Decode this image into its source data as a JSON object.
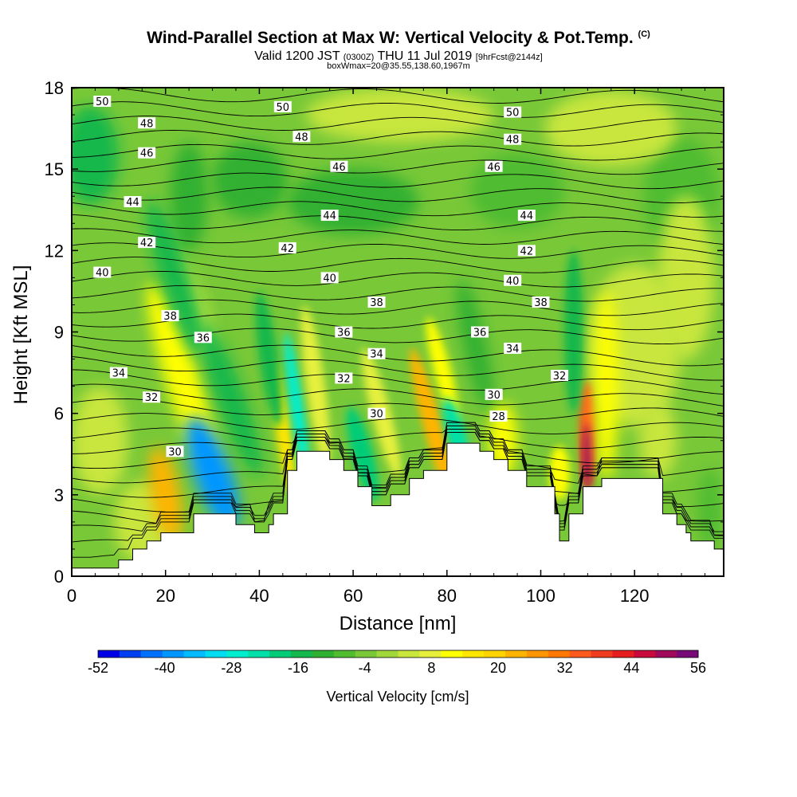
{
  "title": {
    "main": "Wind-Parallel Section at Max W: Vertical Velocity & Pot.Temp.",
    "copyright": "(C)",
    "valid_prefix": "Valid 1200 JST",
    "valid_utc": "(0300Z)",
    "valid_date": "THU 11 Jul 2019",
    "forecast": "[9hrFcst@2144z]",
    "box": "boxWmax=20@35.55,138.60,1967m"
  },
  "chart_data": {
    "type": "heatmap",
    "xlabel": "Distance [nm]",
    "ylabel": "Height [Kft MSL]",
    "xlim": [
      0,
      139
    ],
    "ylim": [
      0,
      18
    ],
    "xticks": [
      0,
      20,
      40,
      60,
      80,
      100,
      120
    ],
    "yticks": [
      0,
      3,
      6,
      9,
      12,
      15,
      18
    ],
    "fill_variable": "Vertical Velocity [cm/s]",
    "colorbar": {
      "title": "Vertical Velocity [cm/s]",
      "tick_labels": [
        "-52",
        "-40",
        "-28",
        "-16",
        "-4",
        "8",
        "20",
        "32",
        "44",
        "56"
      ],
      "min": -52,
      "max": 56,
      "step": 4,
      "colors": [
        "#0000e6",
        "#0040f0",
        "#0070ff",
        "#0096ff",
        "#00bbff",
        "#00ddf0",
        "#00eed0",
        "#00e0a8",
        "#00cc78",
        "#14b84c",
        "#30b030",
        "#50bc30",
        "#78c838",
        "#a0d83c",
        "#c8e63c",
        "#e6f03c",
        "#ffff00",
        "#ffe600",
        "#ffd200",
        "#ffb400",
        "#ff9600",
        "#ff7800",
        "#ff5a1e",
        "#f03c1e",
        "#e61e1e",
        "#c80a3c",
        "#a00a5a",
        "#780a78"
      ]
    },
    "contour_variable": "Potential Temperature",
    "contour_labels": [
      {
        "text": "50",
        "x": 6.5,
        "y": 17.5
      },
      {
        "text": "50",
        "x": 45,
        "y": 17.3
      },
      {
        "text": "50",
        "x": 94,
        "y": 17.1
      },
      {
        "text": "48",
        "x": 16,
        "y": 16.7
      },
      {
        "text": "48",
        "x": 49,
        "y": 16.2
      },
      {
        "text": "48",
        "x": 94,
        "y": 16.1
      },
      {
        "text": "46",
        "x": 16,
        "y": 15.6
      },
      {
        "text": "46",
        "x": 57,
        "y": 15.1
      },
      {
        "text": "46",
        "x": 90,
        "y": 15.1
      },
      {
        "text": "44",
        "x": 13,
        "y": 13.8
      },
      {
        "text": "44",
        "x": 55,
        "y": 13.3
      },
      {
        "text": "44",
        "x": 97,
        "y": 13.3
      },
      {
        "text": "42",
        "x": 16,
        "y": 12.3
      },
      {
        "text": "42",
        "x": 46,
        "y": 12.1
      },
      {
        "text": "42",
        "x": 97,
        "y": 12.0
      },
      {
        "text": "40",
        "x": 6.5,
        "y": 11.2
      },
      {
        "text": "40",
        "x": 55,
        "y": 11.0
      },
      {
        "text": "40",
        "x": 94,
        "y": 10.9
      },
      {
        "text": "38",
        "x": 21,
        "y": 9.6
      },
      {
        "text": "38",
        "x": 65,
        "y": 10.1
      },
      {
        "text": "38",
        "x": 100,
        "y": 10.1
      },
      {
        "text": "36",
        "x": 28,
        "y": 8.8
      },
      {
        "text": "36",
        "x": 58,
        "y": 9.0
      },
      {
        "text": "36",
        "x": 87,
        "y": 9.0
      },
      {
        "text": "34",
        "x": 10,
        "y": 7.5
      },
      {
        "text": "34",
        "x": 65,
        "y": 8.2
      },
      {
        "text": "34",
        "x": 94,
        "y": 8.4
      },
      {
        "text": "32",
        "x": 17,
        "y": 6.6
      },
      {
        "text": "32",
        "x": 58,
        "y": 7.3
      },
      {
        "text": "32",
        "x": 104,
        "y": 7.4
      },
      {
        "text": "30",
        "x": 22,
        "y": 4.6
      },
      {
        "text": "30",
        "x": 65,
        "y": 6.0
      },
      {
        "text": "30",
        "x": 90,
        "y": 6.7
      },
      {
        "text": "28",
        "x": 91,
        "y": 5.9
      }
    ],
    "terrain": [
      [
        0,
        0.3
      ],
      [
        10,
        0.3
      ],
      [
        10,
        0.6
      ],
      [
        13,
        0.6
      ],
      [
        13,
        1.0
      ],
      [
        16,
        1.0
      ],
      [
        16,
        1.3
      ],
      [
        19,
        1.3
      ],
      [
        19,
        1.6
      ],
      [
        26,
        1.6
      ],
      [
        26,
        2.3
      ],
      [
        35,
        2.3
      ],
      [
        35,
        1.9
      ],
      [
        39,
        1.9
      ],
      [
        39,
        1.6
      ],
      [
        42,
        1.6
      ],
      [
        42,
        1.9
      ],
      [
        43,
        1.9
      ],
      [
        43,
        2.3
      ],
      [
        46,
        2.3
      ],
      [
        46,
        3.9
      ],
      [
        48,
        3.9
      ],
      [
        48,
        4.6
      ],
      [
        55,
        4.6
      ],
      [
        55,
        4.3
      ],
      [
        58,
        4.3
      ],
      [
        58,
        3.9
      ],
      [
        61,
        3.9
      ],
      [
        61,
        3.3
      ],
      [
        64,
        3.3
      ],
      [
        64,
        2.6
      ],
      [
        68,
        2.6
      ],
      [
        68,
        3.0
      ],
      [
        72,
        3.0
      ],
      [
        72,
        3.6
      ],
      [
        75,
        3.6
      ],
      [
        75,
        3.9
      ],
      [
        80,
        3.9
      ],
      [
        80,
        4.9
      ],
      [
        87,
        4.9
      ],
      [
        87,
        4.6
      ],
      [
        90,
        4.6
      ],
      [
        90,
        4.3
      ],
      [
        93,
        4.3
      ],
      [
        93,
        3.9
      ],
      [
        97,
        3.9
      ],
      [
        97,
        3.3
      ],
      [
        103,
        3.3
      ],
      [
        103,
        2.3
      ],
      [
        104,
        2.3
      ],
      [
        104,
        1.3
      ],
      [
        106,
        1.3
      ],
      [
        106,
        2.3
      ],
      [
        109,
        2.3
      ],
      [
        109,
        3.3
      ],
      [
        113,
        3.3
      ],
      [
        113,
        3.6
      ],
      [
        126,
        3.6
      ],
      [
        126,
        2.3
      ],
      [
        129,
        2.3
      ],
      [
        129,
        1.9
      ],
      [
        131,
        1.9
      ],
      [
        131,
        1.6
      ],
      [
        132,
        1.6
      ],
      [
        132,
        1.3
      ],
      [
        137,
        1.3
      ],
      [
        137,
        1.0
      ],
      [
        139,
        1.0
      ]
    ],
    "extrema": {
      "max_value": 56,
      "max_location": {
        "x": 110,
        "y": 4.5
      }
    }
  }
}
